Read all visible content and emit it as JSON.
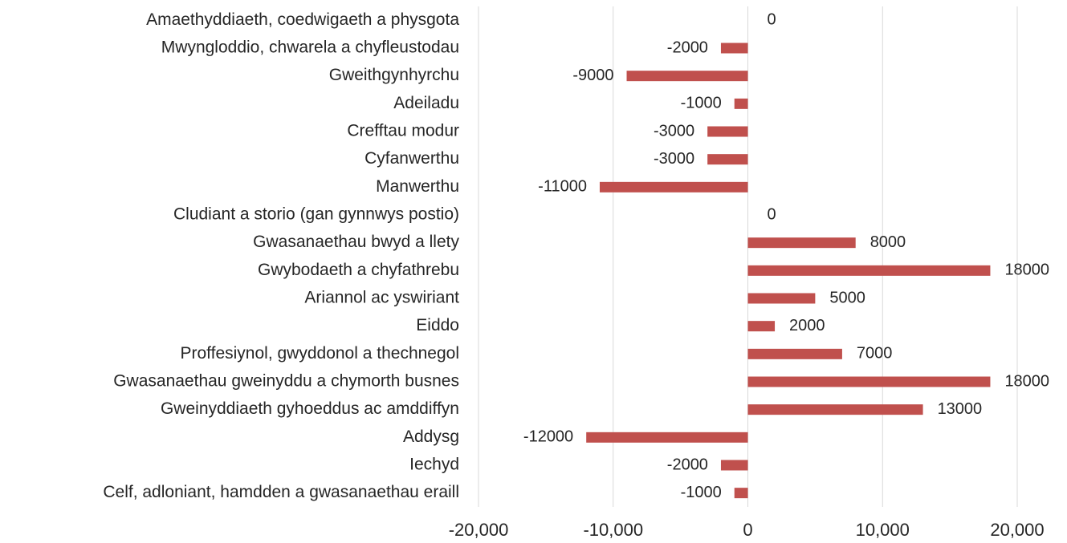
{
  "chart_data": {
    "type": "barh",
    "categories": [
      "Amaethyddiaeth, coedwigaeth a physgota",
      "Mwyngloddio, chwarela a chyfleustodau",
      "Gweithgynhyrchu",
      "Adeiladu",
      "Crefftau modur",
      "Cyfanwerthu",
      "Manwerthu",
      "Cludiant a storio (gan gynnwys postio)",
      "Gwasanaethau bwyd a llety",
      "Gwybodaeth a chyfathrebu",
      "Ariannol ac yswiriant",
      "Eiddo",
      "Proffesiynol, gwyddonol a thechnegol",
      "Gwasanaethau gweinyddu a chymorth busnes",
      "Gweinyddiaeth gyhoeddus ac amddiffyn",
      "Addysg",
      "Iechyd",
      "Celf, adloniant, hamdden a gwasanaethau eraill"
    ],
    "values": [
      0,
      -2000,
      -9000,
      -1000,
      -3000,
      -3000,
      -11000,
      0,
      8000,
      18000,
      5000,
      2000,
      7000,
      18000,
      13000,
      -12000,
      -2000,
      -1000
    ],
    "color": "#c0504d",
    "xlim": [
      -20000,
      20000
    ],
    "xticks": [
      {
        "value": -20000,
        "label": "-20,000"
      },
      {
        "value": -10000,
        "label": "-10,000"
      },
      0,
      {
        "value": 10000,
        "label": "10,000"
      },
      {
        "value": 20000,
        "label": "20,000"
      }
    ],
    "grid": true
  }
}
